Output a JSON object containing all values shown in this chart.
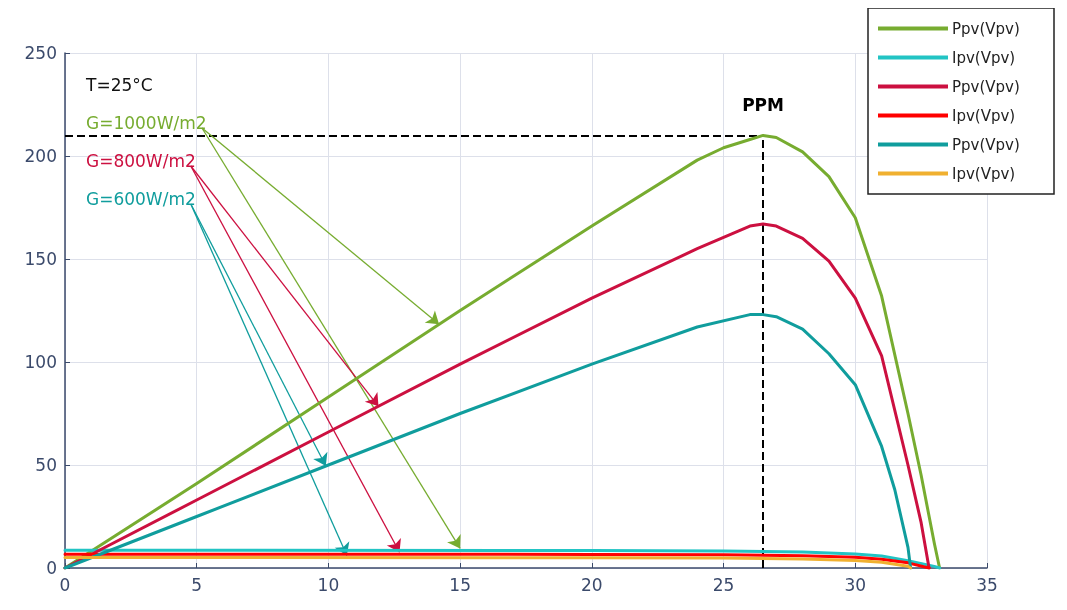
{
  "chart_data": {
    "type": "line",
    "annotations": [
      "T=25°C",
      {
        "text": "G=1000W/m2",
        "x": 14.2,
        "y": 118.3
      },
      {
        "text": "G=800W/m2",
        "x": 11.9,
        "y": 78.5
      },
      {
        "text": "G=600W/m2",
        "x": 9.9,
        "y": 49.5
      }
    ],
    "series": [
      {
        "name": "Ppv(Vpv)",
        "color": "#77ac30",
        "x": [
          0,
          5,
          10,
          15,
          20,
          24,
          25,
          26,
          26.5,
          27,
          28,
          29,
          30,
          31,
          32,
          32.5,
          33,
          33.2
        ],
        "values": [
          0,
          41,
          83,
          125,
          166,
          198,
          204,
          208,
          210,
          209,
          202,
          190,
          170,
          132,
          75,
          45,
          12,
          0
        ]
      },
      {
        "name": "Ipv(Vpv)",
        "color": "#22c4c4",
        "x": [
          0,
          20,
          25,
          28,
          30,
          31,
          32,
          33,
          33.2
        ],
        "values": [
          8.6,
          8.5,
          8.3,
          7.8,
          6.8,
          5.8,
          3.5,
          0.8,
          0
        ]
      },
      {
        "name": "Ppv(Vpv)",
        "color": "#cc1040",
        "x": [
          0,
          5,
          10,
          15,
          20,
          24,
          26,
          26.5,
          27,
          28,
          29,
          30,
          31,
          32,
          32.5,
          32.8
        ],
        "values": [
          0,
          33,
          66,
          99,
          131,
          155,
          166,
          167,
          166,
          160,
          149,
          131,
          103,
          50,
          22,
          0
        ]
      },
      {
        "name": "Ipv(Vpv)",
        "color": "#ff0000",
        "x": [
          0,
          20,
          25,
          28,
          30,
          31,
          32,
          32.8
        ],
        "values": [
          6.7,
          6.6,
          6.4,
          6.0,
          5.2,
          4.2,
          2.5,
          0
        ]
      },
      {
        "name": "Ppv(Vpv)",
        "color": "#109d9d",
        "x": [
          0,
          5,
          10,
          15,
          20,
          24,
          26,
          26.5,
          27,
          28,
          29,
          30,
          31,
          31.5,
          32,
          32.1
        ],
        "values": [
          0,
          25,
          50,
          75,
          99,
          117,
          123,
          123,
          122,
          116,
          104,
          89,
          59,
          38,
          10,
          0
        ]
      },
      {
        "name": "Ipv(Vpv)",
        "color": "#f0b030",
        "x": [
          0,
          20,
          25,
          28,
          30,
          31,
          32,
          32.1
        ],
        "values": [
          5.1,
          5.0,
          4.8,
          4.4,
          3.6,
          2.8,
          0.8,
          0
        ]
      }
    ],
    "xlim": [
      0,
      35
    ],
    "xticks": [
      0,
      5,
      10,
      15,
      20,
      25,
      30,
      35
    ],
    "ylim": [
      0,
      250
    ],
    "yticks": [
      0,
      50,
      100,
      150,
      200,
      250
    ],
    "ref_lines": [
      {
        "axis": "y",
        "value": 210,
        "label": null,
        "color": "#000000",
        "line_style": "dashed"
      },
      {
        "axis": "x",
        "value": 26.5,
        "label": "PPM",
        "color": "#000000",
        "line_style": "dashed"
      }
    ],
    "grid": true,
    "legend": "top right",
    "marker": "none",
    "line_style": "solid"
  }
}
